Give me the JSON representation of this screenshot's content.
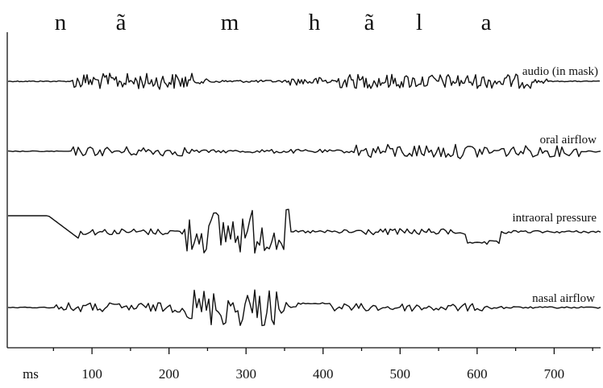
{
  "chart_data": {
    "type": "line",
    "segments": [
      "n",
      "ã",
      "m",
      "h",
      "ã",
      "l",
      "a"
    ],
    "x_unit_label": "ms",
    "x_ticks": [
      100,
      200,
      300,
      400,
      500,
      600,
      700
    ],
    "xlim": [
      -10,
      770
    ],
    "grid": false,
    "series": [
      {
        "name": "audio (in mask)"
      },
      {
        "name": "oral airflow"
      },
      {
        "name": "intraoral pressure"
      },
      {
        "name": "nasal airflow"
      }
    ]
  }
}
